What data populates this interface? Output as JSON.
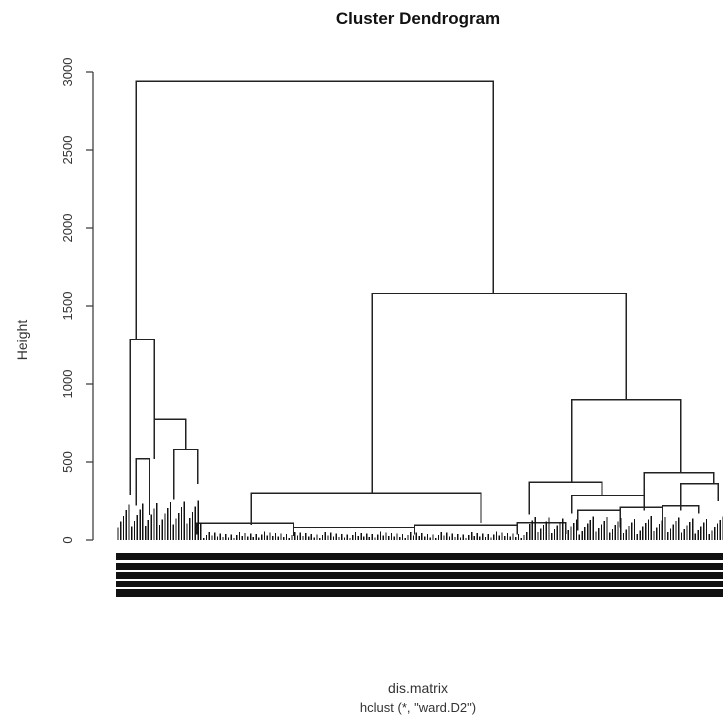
{
  "chart_data": {
    "type": "dendrogram",
    "title": "Cluster Dendrogram",
    "ylabel": "Height",
    "xlabel": "dis.matrix",
    "sub": "hclust (*, \"ward.D2\")",
    "ylim": [
      0,
      3000
    ],
    "y_ticks": [
      0,
      500,
      1000,
      1500,
      2000,
      2500,
      3000
    ],
    "merges": [
      {
        "left": 0.0,
        "right": 0.62,
        "height": 2940
      },
      {
        "left": 0.42,
        "right": 0.84,
        "height": 1580
      },
      {
        "left": 0.19,
        "right": 0.6,
        "height": 300
      },
      {
        "left": 0.75,
        "right": 0.93,
        "height": 900
      },
      {
        "left": 0.0,
        "right": 0.08,
        "height": 1285
      },
      {
        "left": 0.05,
        "right": 0.115,
        "height": 775
      },
      {
        "left": 0.03,
        "right": 0.07,
        "height": 520
      },
      {
        "left": 0.09,
        "right": 0.14,
        "height": 580
      },
      {
        "left": 0.68,
        "right": 0.81,
        "height": 370
      },
      {
        "left": 0.87,
        "right": 0.995,
        "height": 430
      },
      {
        "left": 0.75,
        "right": 0.87,
        "height": 280
      }
    ]
  }
}
